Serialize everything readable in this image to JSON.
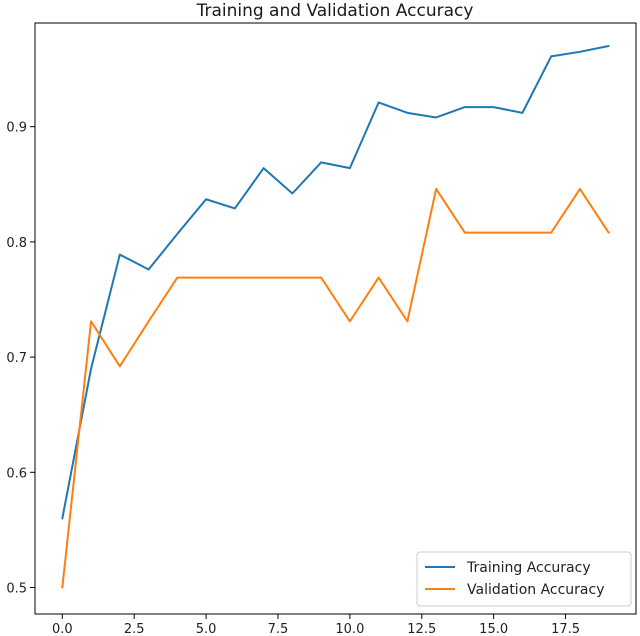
{
  "chart_data": {
    "type": "line",
    "title": "Training and Validation Accuracy",
    "xlabel": "",
    "ylabel": "",
    "xlim": [
      -0.95,
      19.95
    ],
    "ylim": [
      0.477,
      0.99
    ],
    "xticks": [
      0.0,
      2.5,
      5.0,
      7.5,
      10.0,
      12.5,
      15.0,
      17.5
    ],
    "xtick_labels": [
      "0.0",
      "2.5",
      "5.0",
      "7.5",
      "10.0",
      "12.5",
      "15.0",
      "17.5"
    ],
    "yticks": [
      0.5,
      0.6,
      0.7,
      0.8,
      0.9
    ],
    "ytick_labels": [
      "0.5",
      "0.6",
      "0.7",
      "0.8",
      "0.9"
    ],
    "grid": false,
    "legend_position": "lower-right",
    "x": [
      0,
      1,
      2,
      3,
      4,
      5,
      6,
      7,
      8,
      9,
      10,
      11,
      12,
      13,
      14,
      15,
      16,
      17,
      18,
      19
    ],
    "series": [
      {
        "name": "Training Accuracy",
        "color": "#1f77b4",
        "values": [
          0.56,
          0.69,
          0.789,
          0.776,
          0.807,
          0.837,
          0.829,
          0.864,
          0.842,
          0.869,
          0.864,
          0.921,
          0.912,
          0.908,
          0.917,
          0.917,
          0.912,
          0.961,
          0.965,
          0.97
        ]
      },
      {
        "name": "Validation Accuracy",
        "color": "#ff7f0e",
        "values": [
          0.5,
          0.731,
          0.692,
          0.731,
          0.769,
          0.769,
          0.769,
          0.769,
          0.769,
          0.769,
          0.731,
          0.769,
          0.731,
          0.846,
          0.808,
          0.808,
          0.808,
          0.808,
          0.846,
          0.808
        ]
      }
    ]
  }
}
